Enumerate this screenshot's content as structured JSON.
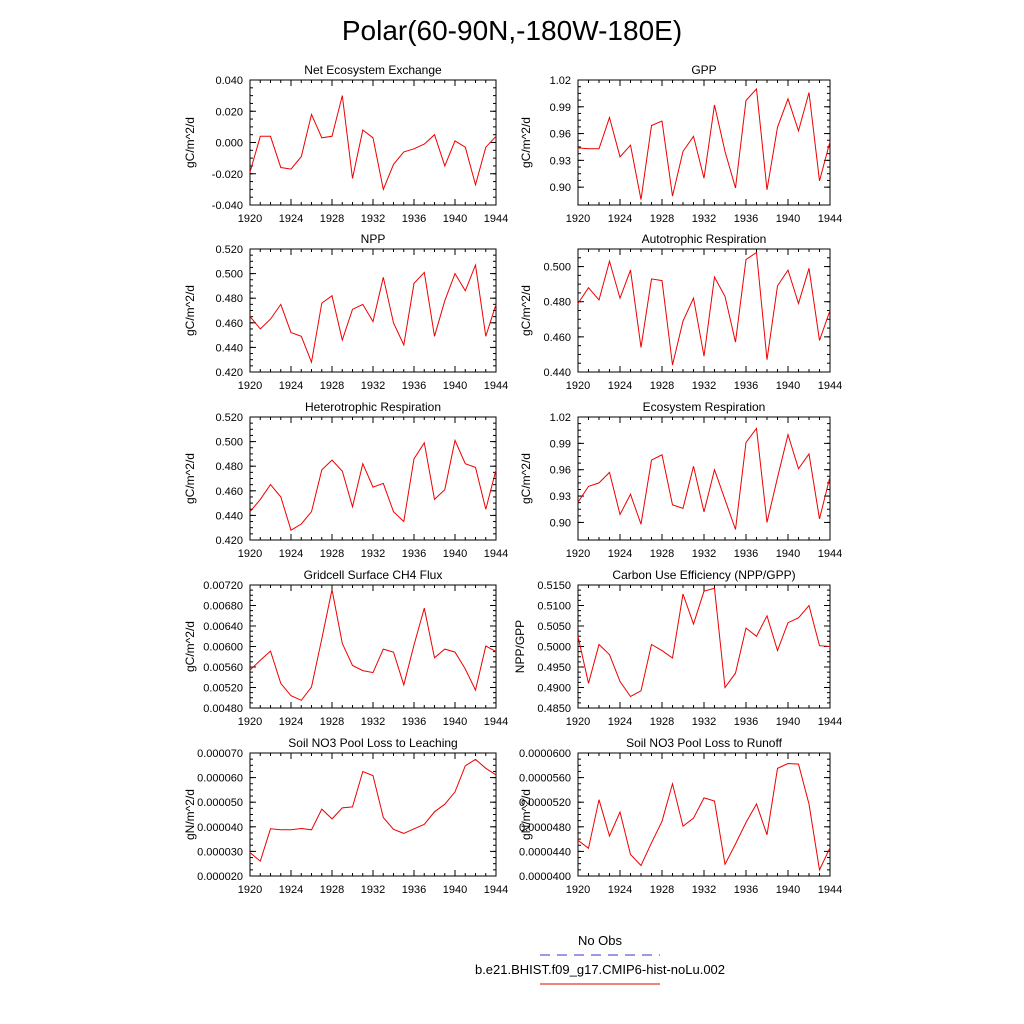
{
  "page": {
    "title": "Polar(60-90N,-180W-180E)"
  },
  "legend": {
    "entries": [
      {
        "label": "No Obs",
        "color": "#3333cc",
        "style": "dashed"
      },
      {
        "label": "b.e21.BHIST.f09_g17.CMIP6-hist-noLu.002",
        "color": "#dd0000",
        "style": "solid"
      }
    ]
  },
  "colors": {
    "series": "#ee0000",
    "axis": "#000000"
  },
  "chart_data": [
    {
      "type": "line",
      "title": "Net Ecosystem Exchange",
      "ylabel": "gC/m^2/d",
      "x": [
        1920,
        1921,
        1922,
        1923,
        1924,
        1925,
        1926,
        1927,
        1928,
        1929,
        1930,
        1931,
        1932,
        1933,
        1934,
        1935,
        1936,
        1937,
        1938,
        1939,
        1940,
        1941,
        1942,
        1943,
        1944
      ],
      "values": [
        -0.019,
        0.004,
        0.004,
        -0.016,
        -0.017,
        -0.009,
        0.018,
        0.003,
        0.004,
        0.03,
        -0.023,
        0.008,
        0.003,
        -0.03,
        -0.014,
        -0.006,
        -0.004,
        -0.001,
        0.005,
        -0.015,
        0.001,
        -0.003,
        -0.027,
        -0.003,
        0.004
      ],
      "xlim": [
        1920,
        1944
      ],
      "ylim": [
        -0.04,
        0.04
      ],
      "xticks": [
        1920,
        1924,
        1928,
        1932,
        1936,
        1940,
        1944
      ],
      "yticks": [
        "-0.040",
        "-0.020",
        "0.000",
        "0.020",
        "0.040"
      ]
    },
    {
      "type": "line",
      "title": "GPP",
      "ylabel": "gC/m^2/d",
      "x": [
        1920,
        1921,
        1922,
        1923,
        1924,
        1925,
        1926,
        1927,
        1928,
        1929,
        1930,
        1931,
        1932,
        1933,
        1934,
        1935,
        1936,
        1937,
        1938,
        1939,
        1940,
        1941,
        1942,
        1943,
        1944
      ],
      "values": [
        0.944,
        0.943,
        0.943,
        0.978,
        0.934,
        0.947,
        0.886,
        0.969,
        0.974,
        0.89,
        0.94,
        0.957,
        0.91,
        0.992,
        0.94,
        0.899,
        0.997,
        1.01,
        0.897,
        0.967,
        0.999,
        0.963,
        1.006,
        0.907,
        0.951
      ],
      "xlim": [
        1920,
        1944
      ],
      "ylim": [
        0.88,
        1.02
      ],
      "xticks": [
        1920,
        1924,
        1928,
        1932,
        1936,
        1940,
        1944
      ],
      "yticks": [
        "0.90",
        "0.93",
        "0.96",
        "0.99",
        "1.02"
      ]
    },
    {
      "type": "line",
      "title": "NPP",
      "ylabel": "gC/m^2/d",
      "x": [
        1920,
        1921,
        1922,
        1923,
        1924,
        1925,
        1926,
        1927,
        1928,
        1929,
        1930,
        1931,
        1932,
        1933,
        1934,
        1935,
        1936,
        1937,
        1938,
        1939,
        1940,
        1941,
        1942,
        1943,
        1944
      ],
      "values": [
        0.465,
        0.455,
        0.463,
        0.475,
        0.452,
        0.449,
        0.428,
        0.476,
        0.482,
        0.446,
        0.471,
        0.475,
        0.461,
        0.497,
        0.46,
        0.442,
        0.492,
        0.501,
        0.449,
        0.478,
        0.5,
        0.486,
        0.507,
        0.449,
        0.475
      ],
      "xlim": [
        1920,
        1944
      ],
      "ylim": [
        0.42,
        0.52
      ],
      "xticks": [
        1920,
        1924,
        1928,
        1932,
        1936,
        1940,
        1944
      ],
      "yticks": [
        "0.420",
        "0.440",
        "0.460",
        "0.480",
        "0.500",
        "0.520"
      ]
    },
    {
      "type": "line",
      "title": "Autotrophic Respiration",
      "ylabel": "gC/m^2/d",
      "x": [
        1920,
        1921,
        1922,
        1923,
        1924,
        1925,
        1926,
        1927,
        1928,
        1929,
        1930,
        1931,
        1932,
        1933,
        1934,
        1935,
        1936,
        1937,
        1938,
        1939,
        1940,
        1941,
        1942,
        1943,
        1944
      ],
      "values": [
        0.479,
        0.488,
        0.481,
        0.503,
        0.482,
        0.498,
        0.454,
        0.493,
        0.492,
        0.444,
        0.469,
        0.482,
        0.449,
        0.494,
        0.483,
        0.457,
        0.504,
        0.508,
        0.447,
        0.489,
        0.498,
        0.479,
        0.499,
        0.458,
        0.475
      ],
      "xlim": [
        1920,
        1944
      ],
      "ylim": [
        0.44,
        0.51
      ],
      "xticks": [
        1920,
        1924,
        1928,
        1932,
        1936,
        1940,
        1944
      ],
      "yticks": [
        "0.440",
        "0.460",
        "0.480",
        "0.500"
      ]
    },
    {
      "type": "line",
      "title": "Heterotrophic Respiration",
      "ylabel": "gC/m^2/d",
      "x": [
        1920,
        1921,
        1922,
        1923,
        1924,
        1925,
        1926,
        1927,
        1928,
        1929,
        1930,
        1931,
        1932,
        1933,
        1934,
        1935,
        1936,
        1937,
        1938,
        1939,
        1940,
        1941,
        1942,
        1943,
        1944
      ],
      "values": [
        0.443,
        0.453,
        0.465,
        0.455,
        0.428,
        0.433,
        0.443,
        0.477,
        0.485,
        0.476,
        0.447,
        0.482,
        0.463,
        0.466,
        0.443,
        0.435,
        0.486,
        0.499,
        0.453,
        0.461,
        0.501,
        0.482,
        0.479,
        0.445,
        0.477
      ],
      "xlim": [
        1920,
        1944
      ],
      "ylim": [
        0.42,
        0.52
      ],
      "xticks": [
        1920,
        1924,
        1928,
        1932,
        1936,
        1940,
        1944
      ],
      "yticks": [
        "0.420",
        "0.440",
        "0.460",
        "0.480",
        "0.500",
        "0.520"
      ]
    },
    {
      "type": "line",
      "title": "Ecosystem Respiration",
      "ylabel": "gC/m^2/d",
      "x": [
        1920,
        1921,
        1922,
        1923,
        1924,
        1925,
        1926,
        1927,
        1928,
        1929,
        1930,
        1931,
        1932,
        1933,
        1934,
        1935,
        1936,
        1937,
        1938,
        1939,
        1940,
        1941,
        1942,
        1943,
        1944
      ],
      "values": [
        0.923,
        0.941,
        0.945,
        0.957,
        0.909,
        0.932,
        0.898,
        0.971,
        0.977,
        0.92,
        0.916,
        0.964,
        0.912,
        0.96,
        0.926,
        0.892,
        0.991,
        1.007,
        0.9,
        0.951,
        1.0,
        0.961,
        0.978,
        0.904,
        0.952
      ],
      "xlim": [
        1920,
        1944
      ],
      "ylim": [
        0.88,
        1.02
      ],
      "xticks": [
        1920,
        1924,
        1928,
        1932,
        1936,
        1940,
        1944
      ],
      "yticks": [
        "0.90",
        "0.93",
        "0.96",
        "0.99",
        "1.02"
      ]
    },
    {
      "type": "line",
      "title": "Gridcell Surface CH4 Flux",
      "ylabel": "gC/m^2/d",
      "x": [
        1920,
        1921,
        1922,
        1923,
        1924,
        1925,
        1926,
        1927,
        1928,
        1929,
        1930,
        1931,
        1932,
        1933,
        1934,
        1935,
        1936,
        1937,
        1938,
        1939,
        1940,
        1941,
        1942,
        1943,
        1944
      ],
      "values": [
        0.00554,
        0.00573,
        0.00591,
        0.00528,
        0.00504,
        0.00495,
        0.00521,
        0.00615,
        0.00711,
        0.00606,
        0.00563,
        0.00553,
        0.00549,
        0.00595,
        0.00589,
        0.00525,
        0.00603,
        0.00675,
        0.00578,
        0.00595,
        0.00589,
        0.00556,
        0.00515,
        0.00601,
        0.0059
      ],
      "xlim": [
        1920,
        1944
      ],
      "ylim": [
        0.0048,
        0.0072
      ],
      "xticks": [
        1920,
        1924,
        1928,
        1932,
        1936,
        1940,
        1944
      ],
      "yticks": [
        "0.00480",
        "0.00520",
        "0.00560",
        "0.00600",
        "0.00640",
        "0.00680",
        "0.00720"
      ]
    },
    {
      "type": "line",
      "title": "Carbon Use Efficiency (NPP/GPP)",
      "ylabel": "NPP/GPP",
      "x": [
        1920,
        1921,
        1922,
        1923,
        1924,
        1925,
        1926,
        1927,
        1928,
        1929,
        1930,
        1931,
        1932,
        1933,
        1934,
        1935,
        1936,
        1937,
        1938,
        1939,
        1940,
        1941,
        1942,
        1943,
        1944
      ],
      "values": [
        0.5025,
        0.491,
        0.5005,
        0.498,
        0.4915,
        0.4878,
        0.4892,
        0.5005,
        0.499,
        0.4972,
        0.5128,
        0.5055,
        0.5135,
        0.5142,
        0.49,
        0.4935,
        0.5045,
        0.5025,
        0.5075,
        0.499,
        0.5058,
        0.507,
        0.51,
        0.5002,
        0.5
      ],
      "xlim": [
        1920,
        1944
      ],
      "ylim": [
        0.485,
        0.515
      ],
      "xticks": [
        1920,
        1924,
        1928,
        1932,
        1936,
        1940,
        1944
      ],
      "yticks": [
        "0.4850",
        "0.4900",
        "0.4950",
        "0.5000",
        "0.5050",
        "0.5100",
        "0.5150"
      ]
    },
    {
      "type": "line",
      "title": "Soil NO3 Pool Loss to Leaching",
      "ylabel": "gN/m^2/d",
      "x": [
        1920,
        1921,
        1922,
        1923,
        1924,
        1925,
        1926,
        1927,
        1928,
        1929,
        1930,
        1931,
        1932,
        1933,
        1934,
        1935,
        1936,
        1937,
        1938,
        1939,
        1940,
        1941,
        1942,
        1943,
        1944
      ],
      "values": [
        2.95e-05,
        2.6e-05,
        3.92e-05,
        3.88e-05,
        3.88e-05,
        3.93e-05,
        3.88e-05,
        4.72e-05,
        4.32e-05,
        4.77e-05,
        4.81e-05,
        6.25e-05,
        6.08e-05,
        4.38e-05,
        3.9e-05,
        3.73e-05,
        3.92e-05,
        4.1e-05,
        4.61e-05,
        4.92e-05,
        5.42e-05,
        6.48e-05,
        6.74e-05,
        6.38e-05,
        6.11e-05
      ],
      "xlim": [
        1920,
        1944
      ],
      "ylim": [
        2e-05,
        7e-05
      ],
      "xticks": [
        1920,
        1924,
        1928,
        1932,
        1936,
        1940,
        1944
      ],
      "yticks": [
        "0.000020",
        "0.000030",
        "0.000040",
        "0.000050",
        "0.000060",
        "0.000070"
      ]
    },
    {
      "type": "line",
      "title": "Soil NO3 Pool Loss to Runoff",
      "ylabel": "gN/m^2/d",
      "x": [
        1920,
        1921,
        1922,
        1923,
        1924,
        1925,
        1926,
        1927,
        1928,
        1929,
        1930,
        1931,
        1932,
        1933,
        1934,
        1935,
        1936,
        1937,
        1938,
        1939,
        1940,
        1941,
        1942,
        1943,
        1944
      ],
      "values": [
        4.58e-05,
        4.45e-05,
        5.24e-05,
        4.65e-05,
        5.04e-05,
        4.35e-05,
        4.17e-05,
        4.54e-05,
        4.89e-05,
        5.5e-05,
        4.81e-05,
        4.94e-05,
        5.27e-05,
        5.22e-05,
        4.19e-05,
        4.52e-05,
        4.87e-05,
        5.17e-05,
        4.67e-05,
        5.75e-05,
        5.83e-05,
        5.82e-05,
        5.17e-05,
        4.1e-05,
        4.46e-05
      ],
      "xlim": [
        1920,
        1944
      ],
      "ylim": [
        4e-05,
        6e-05
      ],
      "xticks": [
        1920,
        1924,
        1928,
        1932,
        1936,
        1940,
        1944
      ],
      "yticks": [
        "0.0000400",
        "0.0000440",
        "0.0000480",
        "0.0000520",
        "0.0000560",
        "0.0000600"
      ]
    }
  ]
}
